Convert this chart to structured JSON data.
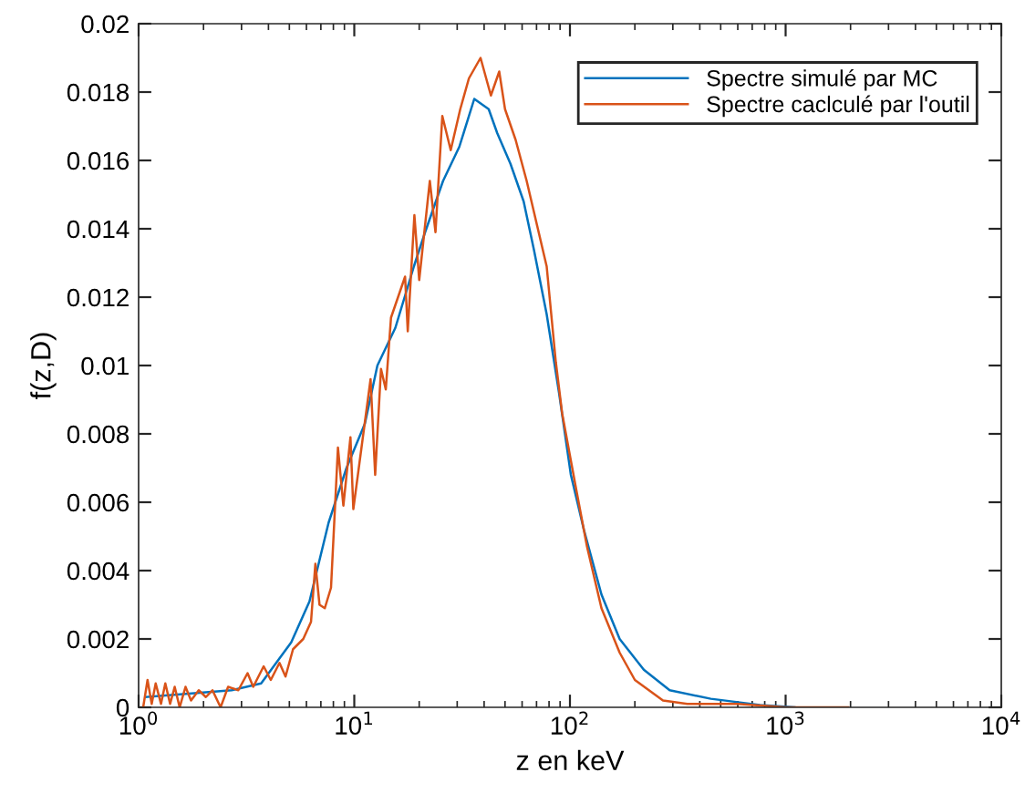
{
  "chart_data": {
    "type": "line",
    "xlabel": "z en keV",
    "ylabel": "f(z,D)",
    "log": "x",
    "xlim": [
      1,
      10000
    ],
    "xticks": [
      {
        "value": 1,
        "label": "10$^{0}$"
      },
      {
        "value": 10,
        "label": "10$^{1}$"
      },
      {
        "value": 100,
        "label": "10$^{2}$"
      },
      {
        "value": 1000,
        "label": "10$^{3}$"
      },
      {
        "value": 10000,
        "label": "10$^{4}$"
      }
    ],
    "ylim": [
      0,
      0.02
    ],
    "yticks": [
      0,
      0.002,
      0.004,
      0.006,
      0.008,
      0.01,
      0.012,
      0.014,
      0.016,
      0.018,
      0.02
    ],
    "grid": false,
    "legend": "top right",
    "line_style": "solid",
    "marker": "none",
    "series": [
      {
        "name": "Spectre simulé par MC",
        "color": "#0072bd",
        "x": [
          1.08,
          2.7,
          3.7,
          5.1,
          6.2,
          7.6,
          9.2,
          11.2,
          12.8,
          15.5,
          18.9,
          21.3,
          25.8,
          30.7,
          36,
          42,
          46,
          53,
          61,
          68,
          78,
          89,
          101,
          116,
          140,
          170,
          220,
          290,
          450,
          760,
          1100
        ],
        "values": [
          0.0003,
          0.0005,
          0.0007,
          0.0019,
          0.0031,
          0.0054,
          0.007,
          0.0083,
          0.01,
          0.0111,
          0.0129,
          0.0139,
          0.0154,
          0.0164,
          0.0178,
          0.0175,
          0.0168,
          0.0159,
          0.0148,
          0.0134,
          0.0115,
          0.0092,
          0.0068,
          0.0052,
          0.0033,
          0.002,
          0.0011,
          0.0005,
          0.00025,
          7e-05,
          0
        ]
      },
      {
        "name": "Spectre caclculé par l'outil",
        "color": "#d95319",
        "x": [
          1.05,
          1.1,
          1.15,
          1.2,
          1.27,
          1.33,
          1.4,
          1.47,
          1.55,
          1.65,
          1.75,
          1.9,
          2.05,
          2.2,
          2.4,
          2.6,
          2.9,
          3.2,
          3.4,
          3.8,
          4.1,
          4.5,
          4.8,
          5.2,
          5.8,
          6.3,
          6.6,
          6.9,
          7.3,
          7.8,
          8.4,
          8.9,
          9.6,
          9.9,
          11.9,
          12.5,
          13.3,
          14,
          14.8,
          17.2,
          17.7,
          19,
          20,
          22.4,
          23.8,
          25.6,
          28,
          31,
          34,
          38.5,
          43,
          47,
          50,
          56,
          63,
          71,
          78,
          86,
          92,
          106,
          120,
          140,
          170,
          200,
          270,
          350,
          600,
          1000,
          1950
        ],
        "values": [
          0,
          0.0008,
          0.0001,
          0.0007,
          0.0001,
          0.0007,
          0.0001,
          0.0006,
          0,
          0.0006,
          0.0002,
          0.0005,
          0.0003,
          0.0005,
          0,
          0.0006,
          0.0005,
          0.001,
          0.0006,
          0.0012,
          0.0008,
          0.0013,
          0.0009,
          0.0017,
          0.002,
          0.0025,
          0.0042,
          0.003,
          0.0029,
          0.0035,
          0.0076,
          0.0059,
          0.0079,
          0.0058,
          0.0096,
          0.0068,
          0.0099,
          0.0093,
          0.0114,
          0.0126,
          0.011,
          0.0144,
          0.0125,
          0.0154,
          0.0139,
          0.0173,
          0.0163,
          0.0175,
          0.0184,
          0.019,
          0.0179,
          0.0186,
          0.0175,
          0.0166,
          0.0154,
          0.014,
          0.0129,
          0.0101,
          0.0086,
          0.0065,
          0.0047,
          0.0029,
          0.0016,
          0.0008,
          0.0002,
          0.0001,
          0.0001,
          0,
          0
        ]
      }
    ]
  }
}
